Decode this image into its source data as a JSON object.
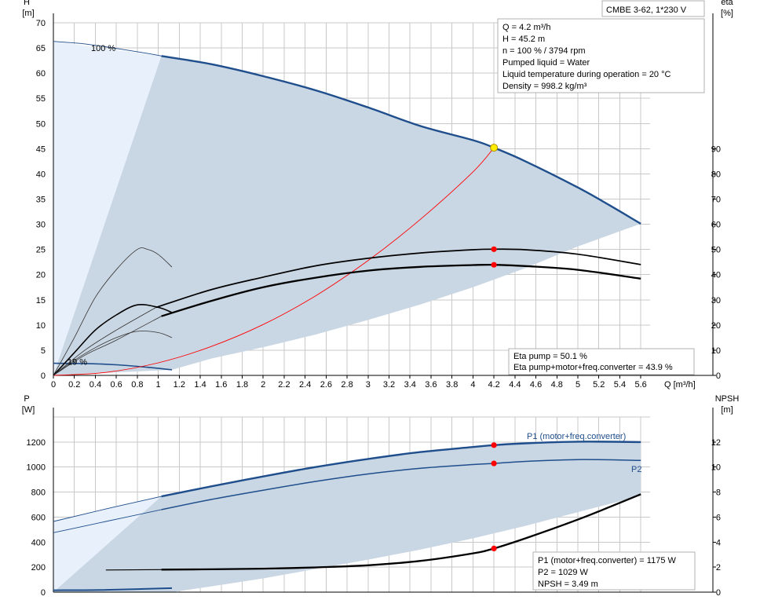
{
  "title_box": "CMBE 3-62, 1*230 V",
  "colors": {
    "pump_curve": "#1f4e8c",
    "region_fill": "#c9d6e3",
    "low_region_fill": "#e8f1fb",
    "system_curve": "#ff0000",
    "operating_point": "#ff0000",
    "duty_point": "#ffee00",
    "eta_curve": "#000000"
  },
  "info_top": [
    "Q = 4.2 m³/h",
    "H = 45.2 m",
    "n = 100 % / 3794 rpm",
    "Pumped liquid = Water",
    "Liquid temperature during operation = 20 °C",
    "Density = 998.2 kg/m³"
  ],
  "info_eta": [
    "Eta pump = 50.1 %",
    "Eta pump+motor+freq.converter = 43.9 %"
  ],
  "info_bottom": [
    "P1 (motor+freq.converter) = 1175 W",
    "P2 = 1029 W",
    "NPSH = 3.49 m"
  ],
  "chart_data": [
    {
      "type": "line",
      "xlabel": "Q [m³/h]",
      "ylabel": "H\n[m]",
      "y2label": "eta\n[%]",
      "xlim": [
        0,
        6.0
      ],
      "ylim": [
        0,
        70
      ],
      "y2lim": [
        0,
        140
      ],
      "xticks": [
        0,
        0.2,
        0.4,
        0.6,
        0.8,
        1.0,
        1.2,
        1.4,
        1.6,
        1.8,
        2.0,
        2.2,
        2.4,
        2.6,
        2.8,
        3.0,
        3.2,
        3.4,
        3.6,
        3.8,
        4.0,
        4.2,
        4.4,
        4.6,
        4.8,
        5.0,
        5.2,
        5.4,
        5.6
      ],
      "yticks": [
        0,
        5,
        10,
        15,
        20,
        25,
        30,
        35,
        40,
        45,
        50,
        55,
        60,
        65,
        70
      ],
      "y2ticks": [
        0,
        10,
        20,
        30,
        40,
        50,
        60,
        70,
        80,
        90
      ],
      "annotations": [
        "100 %",
        "19 %"
      ],
      "series": [
        {
          "role": "pump_100",
          "x": [
            1.03,
            1.5,
            2.0,
            2.5,
            3.0,
            3.5,
            4.0,
            4.2,
            4.5,
            5.0,
            5.3,
            5.6
          ],
          "y": [
            63.4,
            61.8,
            59.4,
            56.6,
            53.2,
            49.5,
            46.7,
            45.2,
            42.5,
            37.3,
            33.8,
            30.1
          ]
        },
        {
          "role": "pump_100_ext",
          "x": [
            0,
            0.3,
            0.6,
            0.9,
            1.03
          ],
          "y": [
            66.3,
            65.8,
            64.9,
            63.9,
            63.4
          ]
        },
        {
          "role": "pump_19",
          "x": [
            0,
            0.3,
            0.6,
            0.9,
            1.13
          ],
          "y": [
            2.4,
            2.35,
            2.1,
            1.6,
            1.1
          ]
        },
        {
          "role": "system",
          "x": [
            0,
            0.5,
            1.0,
            1.5,
            2.0,
            2.5,
            3.0,
            3.5,
            4.0,
            4.2
          ],
          "y": [
            0,
            0.6,
            2.5,
            5.7,
            10.1,
            15.8,
            22.8,
            31.0,
            40.4,
            45.2
          ]
        },
        {
          "role": "eta_pump",
          "x": [
            0.98,
            1.5,
            2.0,
            2.5,
            3.0,
            3.5,
            4.0,
            4.2,
            4.5,
            5.0,
            5.6
          ],
          "y2": [
            27,
            34,
            39,
            43.5,
            46.5,
            48.6,
            49.9,
            50.1,
            49.9,
            48.1,
            44
          ]
        },
        {
          "role": "eta_total",
          "x": [
            1.03,
            1.5,
            2.0,
            2.5,
            3.0,
            3.5,
            4.0,
            4.2,
            4.5,
            5.0,
            5.6
          ],
          "y2": [
            23.5,
            29.5,
            35,
            38.8,
            41.6,
            43.1,
            43.8,
            43.9,
            43.4,
            41.9,
            38.4
          ]
        },
        {
          "role": "eta_low_a",
          "x": [
            0,
            0.2,
            0.4,
            0.6,
            0.8,
            0.9,
            1.0,
            1.13
          ],
          "y2": [
            0,
            15,
            31,
            42,
            50,
            50,
            48,
            43
          ]
        },
        {
          "role": "eta_low_b",
          "x": [
            0,
            0.2,
            0.4,
            0.6,
            0.8,
            1.0,
            1.13
          ],
          "y2": [
            0,
            9,
            18,
            24,
            28,
            27,
            25
          ]
        },
        {
          "role": "eta_low_c",
          "x": [
            0,
            0.2,
            0.4,
            0.6,
            0.8,
            1.0,
            1.13
          ],
          "y2": [
            0,
            6,
            11,
            15,
            17.5,
            17,
            15
          ]
        },
        {
          "role": "eta_low_d",
          "x": [
            0,
            0.3,
            0.6,
            0.98
          ],
          "y2": [
            0,
            10,
            18,
            27
          ]
        },
        {
          "role": "eta_low_e",
          "x": [
            0,
            0.3,
            0.6,
            1.03
          ],
          "y2": [
            0,
            8,
            14,
            23.5
          ]
        }
      ],
      "points": [
        {
          "role": "duty",
          "x": 4.2,
          "y": 45.2
        },
        {
          "role": "eta_pump",
          "x": 4.2,
          "y2": 50.1
        },
        {
          "role": "eta_total",
          "x": 4.2,
          "y2": 43.9
        }
      ],
      "envelope": {
        "x": [
          0,
          1.03,
          1.5,
          2.0,
          2.5,
          3.0,
          3.5,
          4.0,
          4.5,
          5.0,
          5.6,
          5.6,
          5.0,
          4.5,
          4.0,
          3.5,
          3.0,
          2.5,
          2.0,
          1.5,
          1.13,
          0.5,
          0
        ],
        "y": [
          0,
          63.4,
          61.8,
          59.4,
          56.6,
          53.2,
          49.5,
          46.7,
          42.5,
          37.3,
          30.1,
          30.1,
          25.6,
          21.3,
          17.5,
          14.1,
          11.0,
          8.1,
          5.6,
          3.3,
          1.1,
          0.5,
          0
        ]
      },
      "low_region": {
        "x": [
          0,
          1.03,
          1.03,
          0.98,
          0.85,
          0.7,
          0.5,
          0.3,
          0.1,
          0
        ],
        "y": [
          66.3,
          63.4,
          62.0,
          50,
          37,
          26,
          14,
          6,
          1,
          0
        ]
      }
    },
    {
      "type": "line",
      "xlabel": "",
      "ylabel": "P\n[W]",
      "y2label": "NPSH\n[m]",
      "xlim": [
        0,
        6.0
      ],
      "ylim": [
        0,
        1400
      ],
      "y2lim": [
        0,
        14
      ],
      "yticks": [
        0,
        200,
        400,
        600,
        800,
        1000,
        1200
      ],
      "y2ticks": [
        0,
        2,
        4,
        6,
        8,
        10,
        12
      ],
      "series": [
        {
          "name": "P1 (motor+freq.converter)",
          "x": [
            1.03,
            1.5,
            2.0,
            2.5,
            3.0,
            3.5,
            4.0,
            4.2,
            4.5,
            5.0,
            5.6
          ],
          "y": [
            765,
            845,
            925,
            1000,
            1065,
            1120,
            1160,
            1175,
            1190,
            1203,
            1200
          ]
        },
        {
          "name": "P1_ext",
          "x": [
            0,
            0.5,
            1.03
          ],
          "y": [
            565,
            665,
            765
          ]
        },
        {
          "name": "P2",
          "x": [
            1.03,
            1.5,
            2.0,
            2.5,
            3.0,
            3.5,
            4.0,
            4.2,
            4.5,
            5.0,
            5.6
          ],
          "y": [
            660,
            740,
            815,
            885,
            945,
            990,
            1020,
            1029,
            1045,
            1060,
            1053
          ]
        },
        {
          "name": "P2_ext",
          "x": [
            0,
            0.5,
            1.03
          ],
          "y": [
            475,
            565,
            660
          ]
        },
        {
          "name": "NPSH",
          "x": [
            1.03,
            1.5,
            2.0,
            2.5,
            3.0,
            3.5,
            4.0,
            4.2,
            4.5,
            5.0,
            5.3,
            5.6
          ],
          "y2": [
            1.8,
            1.83,
            1.88,
            1.98,
            2.15,
            2.5,
            3.1,
            3.49,
            4.3,
            5.8,
            6.8,
            7.83
          ]
        },
        {
          "name": "NPSH_ext",
          "x": [
            0.5,
            1.03
          ],
          "y2": [
            1.77,
            1.8
          ]
        },
        {
          "name": "P_low",
          "x": [
            0,
            0.5,
            1.13
          ],
          "y": [
            15,
            18,
            32
          ]
        }
      ],
      "points": [
        {
          "role": "P1",
          "x": 4.2,
          "y": 1175
        },
        {
          "role": "P2",
          "x": 4.2,
          "y": 1029
        },
        {
          "role": "NPSH",
          "x": 4.2,
          "y2": 3.49
        }
      ],
      "envelope": {
        "x": [
          0,
          1.03,
          1.5,
          2.0,
          2.5,
          3.0,
          3.5,
          4.0,
          4.5,
          5.0,
          5.6,
          5.6,
          5.0,
          4.5,
          4.0,
          3.5,
          3.0,
          2.5,
          2.0,
          1.5,
          1.13,
          0
        ],
        "y": [
          0,
          765,
          845,
          925,
          1000,
          1065,
          1120,
          1160,
          1190,
          1203,
          1200,
          770,
          640,
          530,
          430,
          340,
          260,
          185,
          110,
          45,
          0,
          0
        ]
      },
      "low_region": {
        "x": [
          0,
          1.03,
          1.03,
          0.95,
          0.8,
          0.6,
          0.4,
          0.2,
          0
        ],
        "y": [
          565,
          765,
          600,
          420,
          250,
          110,
          35,
          5,
          0
        ]
      }
    }
  ]
}
